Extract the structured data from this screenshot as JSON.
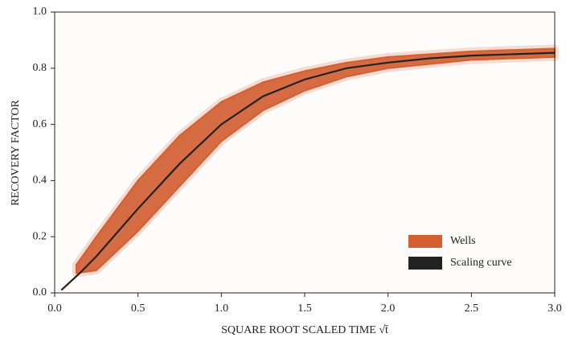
{
  "chart_data": {
    "type": "line",
    "xlabel": "SQUARE ROOT SCALED TIME √t̄",
    "ylabel": "RECOVERY FACTOR",
    "xlim": [
      0,
      3
    ],
    "ylim": [
      0,
      1
    ],
    "xticks": [
      {
        "value": 0,
        "label": "0.0"
      },
      0.5,
      {
        "value": 1,
        "label": "1.0"
      },
      1.5,
      {
        "value": 2,
        "label": "2.0"
      },
      2.5,
      {
        "value": 3,
        "label": "3.0"
      }
    ],
    "yticks": [
      {
        "value": 0,
        "label": "0.0"
      },
      0.2,
      0.4,
      0.6,
      0.8,
      {
        "value": 1,
        "label": "1.0"
      }
    ],
    "grid": false,
    "legend": "lower right",
    "bands": [
      {
        "name": "Wells",
        "color": "#d35f33",
        "x": [
          0.13,
          0.25,
          0.5,
          0.75,
          1.0,
          1.25,
          1.5,
          1.75,
          2.0,
          2.5,
          3.0
        ],
        "lower": [
          0.07,
          0.08,
          0.22,
          0.38,
          0.54,
          0.65,
          0.72,
          0.77,
          0.8,
          0.83,
          0.84
        ],
        "upper": [
          0.1,
          0.2,
          0.4,
          0.56,
          0.68,
          0.75,
          0.79,
          0.82,
          0.84,
          0.86,
          0.87
        ]
      }
    ],
    "series": [
      {
        "name": "Scaling curve",
        "color": "#222222",
        "x": [
          0.04,
          0.15,
          0.25,
          0.5,
          0.75,
          1.0,
          1.25,
          1.5,
          1.75,
          2.0,
          2.25,
          2.5,
          2.75,
          3.0
        ],
        "values": [
          0.01,
          0.07,
          0.13,
          0.3,
          0.46,
          0.6,
          0.7,
          0.76,
          0.8,
          0.82,
          0.835,
          0.845,
          0.85,
          0.855
        ]
      }
    ]
  }
}
